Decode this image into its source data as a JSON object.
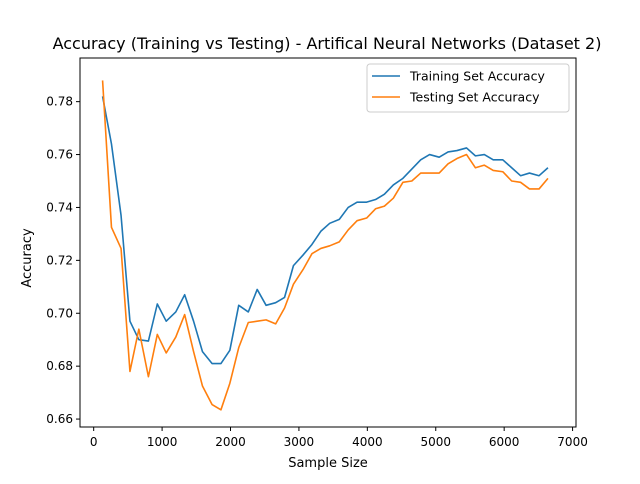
{
  "chart_data": {
    "type": "line",
    "title": "Accuracy (Training vs Testing) - Artifical Neural Networks (Dataset 2)",
    "xlabel": "Sample Size",
    "ylabel": "Accuracy",
    "xlim": [
      -200,
      7050
    ],
    "ylim": [
      0.657,
      0.7965
    ],
    "xticks": [
      0,
      1000,
      2000,
      3000,
      4000,
      5000,
      6000,
      7000
    ],
    "yticks": [
      0.66,
      0.68,
      0.7,
      0.72,
      0.74,
      0.76,
      0.78
    ],
    "grid": false,
    "legend_position": "top-right",
    "x": [
      130,
      260,
      400,
      530,
      660,
      800,
      930,
      1060,
      1200,
      1330,
      1460,
      1590,
      1730,
      1860,
      1990,
      2120,
      2260,
      2390,
      2520,
      2660,
      2790,
      2920,
      3060,
      3190,
      3320,
      3450,
      3590,
      3720,
      3850,
      3990,
      4120,
      4250,
      4380,
      4520,
      4650,
      4780,
      4910,
      5050,
      5180,
      5310,
      5450,
      5580,
      5710,
      5840,
      5980,
      6110,
      6240,
      6370,
      6510,
      6640
    ],
    "series": [
      {
        "name": "Training Set Accuracy",
        "color": "#1f77b4",
        "values": [
          0.782,
          0.764,
          0.737,
          0.697,
          0.69,
          0.6895,
          0.7035,
          0.697,
          0.7005,
          0.707,
          0.697,
          0.6855,
          0.681,
          0.681,
          0.686,
          0.703,
          0.7005,
          0.709,
          0.703,
          0.704,
          0.706,
          0.718,
          0.722,
          0.726,
          0.731,
          0.734,
          0.7355,
          0.74,
          0.742,
          0.742,
          0.743,
          0.745,
          0.7485,
          0.751,
          0.7545,
          0.758,
          0.76,
          0.759,
          0.761,
          0.7615,
          0.7625,
          0.7595,
          0.76,
          0.758,
          0.758,
          0.755,
          0.752,
          0.753,
          0.752,
          0.755
        ]
      },
      {
        "name": "Testing Set Accuracy",
        "color": "#ff7f0e",
        "values": [
          0.788,
          0.7325,
          0.7245,
          0.678,
          0.694,
          0.676,
          0.692,
          0.685,
          0.691,
          0.6995,
          0.6855,
          0.6725,
          0.6655,
          0.6635,
          0.6735,
          0.687,
          0.6965,
          0.697,
          0.6975,
          0.696,
          0.702,
          0.711,
          0.7165,
          0.7225,
          0.7245,
          0.7255,
          0.727,
          0.7315,
          0.735,
          0.736,
          0.7395,
          0.7405,
          0.7435,
          0.7495,
          0.75,
          0.753,
          0.753,
          0.753,
          0.7565,
          0.7585,
          0.76,
          0.755,
          0.756,
          0.754,
          0.7535,
          0.75,
          0.7495,
          0.747,
          0.747,
          0.751
        ]
      }
    ]
  }
}
